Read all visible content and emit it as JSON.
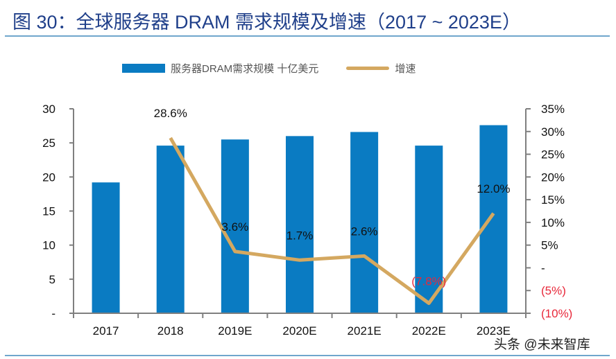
{
  "title": "图 30：全球服务器 DRAM 需求规模及增速（2017 ~ 2023E）",
  "watermark": "头条 @未来智库",
  "chart_data": {
    "type": "bar+line",
    "categories": [
      "2017",
      "2018",
      "2019E",
      "2020E",
      "2021E",
      "2022E",
      "2023E"
    ],
    "series": [
      {
        "name": "服务器DRAM需求规模 十亿美元",
        "type": "bar",
        "axis": "left",
        "color": "#0a7bc2",
        "values": [
          19.2,
          24.6,
          25.5,
          26.0,
          26.6,
          24.6,
          27.6
        ]
      },
      {
        "name": "增速",
        "type": "line",
        "axis": "right",
        "color": "#d4a860",
        "values": [
          null,
          28.6,
          3.6,
          1.7,
          2.6,
          -7.8,
          12.0
        ],
        "data_labels": [
          "",
          "28.6%",
          "3.6%",
          "1.7%",
          "2.6%",
          "(7.8%)",
          "12.0%"
        ]
      }
    ],
    "left_axis": {
      "ylim": [
        0,
        30
      ],
      "ticks": [
        0,
        5,
        10,
        15,
        20,
        25,
        30
      ],
      "tick_labels": [
        "-",
        "5",
        "10",
        "15",
        "20",
        "25",
        "30"
      ]
    },
    "right_axis": {
      "ylim": [
        -10,
        35
      ],
      "ticks": [
        -10,
        -5,
        0,
        5,
        10,
        15,
        20,
        25,
        30,
        35
      ],
      "tick_labels": [
        "(10%)",
        "(5%)",
        "-",
        "5%",
        "10%",
        "15%",
        "20%",
        "25%",
        "30%",
        "35%"
      ]
    },
    "negative_color": "#e8283a",
    "legend": "top",
    "grid": false
  }
}
